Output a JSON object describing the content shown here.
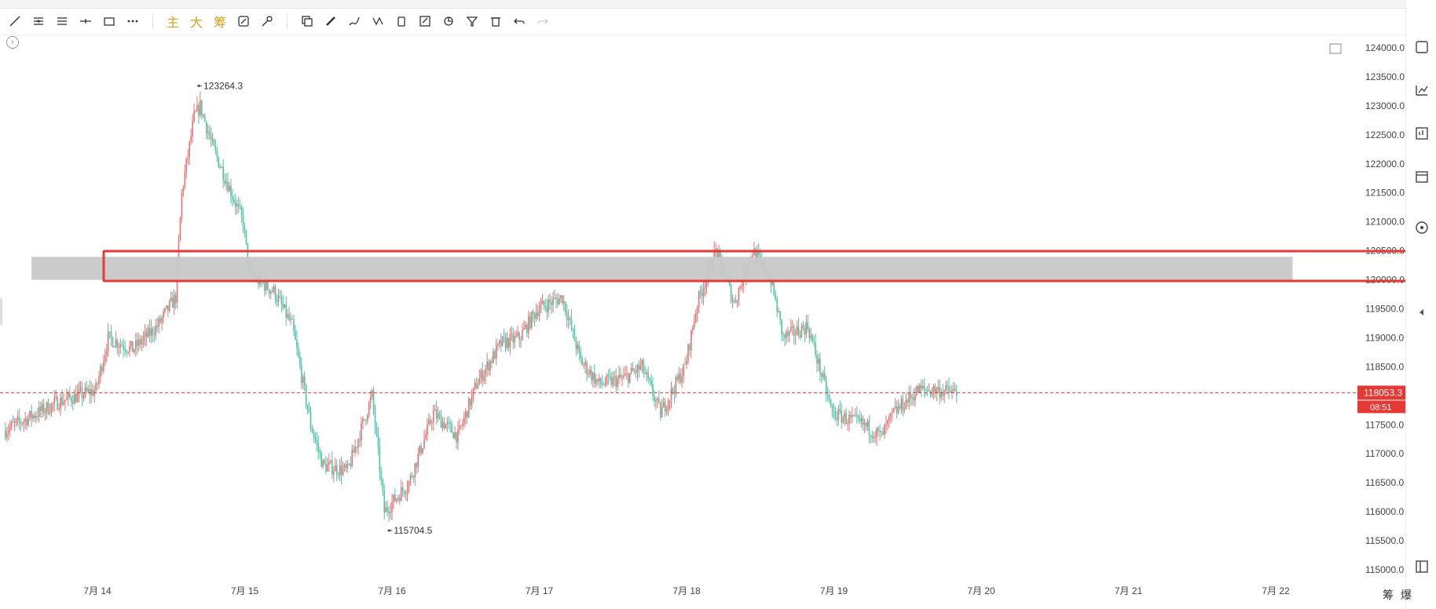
{
  "toolbar": {
    "cn_buttons": [
      "主",
      "大",
      "筹"
    ]
  },
  "bottom_right": [
    "筹",
    "爆"
  ],
  "colors": {
    "up": "#e57373",
    "down": "#4dc4a8",
    "zone_fill": "#c8c8c8",
    "zone_border": "#e53935",
    "price_line": "#e53935"
  },
  "chart_data": {
    "type": "candlestick",
    "ylim": [
      114800,
      124300
    ],
    "y_ticks": [
      124000,
      123500,
      123000,
      122500,
      122000,
      121500,
      121000,
      120500,
      120000,
      119500,
      119000,
      118500,
      118000,
      117500,
      117000,
      116500,
      116000,
      115500,
      115000
    ],
    "y_tick_labels": [
      "124000.0",
      "123500.0",
      "123000.0",
      "122500.0",
      "122000.0",
      "121500.0",
      "121000.0",
      "120500.0",
      "120000.0",
      "119500.0",
      "119000.0",
      "118500.0",
      "118000.0",
      "117500.0",
      "117000.0",
      "116500.0",
      "116000.0",
      "115500.0",
      "115000.0"
    ],
    "x_labels": [
      "7月 14",
      "7月 15",
      "7月 16",
      "7月 17",
      "7月 18",
      "7月 19",
      "7月 20",
      "7月 21",
      "7月 22"
    ],
    "x_range": [
      "7月 13 09:00",
      "7月 22 12:00"
    ],
    "current_price": 118053.3,
    "current_price_label": "118053.3",
    "countdown_label": "08:51",
    "annotations": [
      {
        "label": "123264.3",
        "date": "7月 14 16:00",
        "value": 123264.3,
        "type": "high"
      },
      {
        "label": "115704.5",
        "date": "7月 15 23:00",
        "value": 115704.5,
        "type": "low"
      }
    ],
    "zone": {
      "from": "7月 13 13:00",
      "to": "7月 22 03:00",
      "low": 120000,
      "high": 120450
    },
    "path": [
      {
        "date": "7月 13 09:00",
        "value": 117400
      },
      {
        "date": "7月 13 18:00",
        "value": 117900
      },
      {
        "date": "7月 14 00:00",
        "value": 118100
      },
      {
        "date": "7月 14 02:00",
        "value": 119000
      },
      {
        "date": "7月 14 06:00",
        "value": 118800
      },
      {
        "date": "7月 14 10:00",
        "value": 119200
      },
      {
        "date": "7月 14 13:00",
        "value": 119700
      },
      {
        "date": "7月 14 14:00",
        "value": 121500
      },
      {
        "date": "7md14 16:00",
        "value": 122800
      },
      {
        "date": "7月 14 17:00",
        "value": 123000
      },
      {
        "date": "7月 14 19:00",
        "value": 122300
      },
      {
        "date": "7月 15 00:00",
        "value": 121000
      },
      {
        "date": "7月 15 01:00",
        "value": 120100
      },
      {
        "date": "7月 15 05:00",
        "value": 119800
      },
      {
        "date": "7月 15 08:00",
        "value": 119200
      },
      {
        "date": "7月 15 11:00",
        "value": 117500
      },
      {
        "date": "7月 15 13:00",
        "value": 116800
      },
      {
        "date": "7月 15 17:00",
        "value": 116700
      },
      {
        "date": "7月 15 21:00",
        "value": 118000
      },
      {
        "date": "7月 15 23:00",
        "value": 116000
      },
      {
        "date": "7月 16 03:00",
        "value": 116500
      },
      {
        "date": "7月 16 07:00",
        "value": 117700
      },
      {
        "date": "7月 16 11:00",
        "value": 117300
      },
      {
        "date": "7月 16 14:00",
        "value": 118200
      },
      {
        "date": "7月 16 18:00",
        "value": 118900
      },
      {
        "date": "7月 16 21:00",
        "value": 119000
      },
      {
        "date": "7月 17 00:00",
        "value": 119500
      },
      {
        "date": "7月 17 04:00",
        "value": 119700
      },
      {
        "date": "7月 17 07:00",
        "value": 118600
      },
      {
        "date": "7月 17 10:00",
        "value": 118200
      },
      {
        "date": "7月 17 14:00",
        "value": 118300
      },
      {
        "date": "7月 17 17:00",
        "value": 118500
      },
      {
        "date": "7月 17 20:00",
        "value": 117700
      },
      {
        "date": "7月 18 00:00",
        "value": 118500
      },
      {
        "date": "7月 18 02:00",
        "value": 119600
      },
      {
        "date": "7月 18 05:00",
        "value": 120500
      },
      {
        "date": "7月 18 08:00",
        "value": 119600
      },
      {
        "date": "7月 18 11:00",
        "value": 120500
      },
      {
        "date": "7月 18 14:00",
        "value": 120000
      },
      {
        "date": "7月 18 16:00",
        "value": 119000
      },
      {
        "date": "7月 18 20:00",
        "value": 119200
      },
      {
        "date": "7月 19 00:00",
        "value": 117700
      },
      {
        "date": "7月 19 05:00",
        "value": 117500
      },
      {
        "date": "7月 19 08:00",
        "value": 117300
      },
      {
        "date": "7月 19 10:00",
        "value": 117700
      },
      {
        "date": "7月 19 14:00",
        "value": 118100
      },
      {
        "date": "7月 19 17:00",
        "value": 118100
      },
      {
        "date": "7月 19 20:00",
        "value": 118053
      }
    ]
  }
}
